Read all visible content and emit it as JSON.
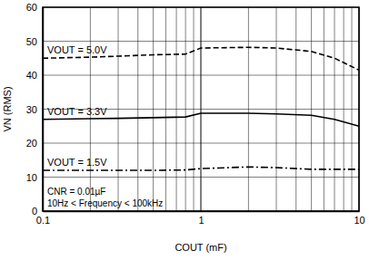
{
  "chart_data": {
    "type": "line",
    "x_label": "COUT (mF)",
    "y_label": "VN (RMS)",
    "annotations": [
      "CNR = 0.01µF",
      "10Hz < Frequency < 100kHz"
    ],
    "x": [
      0.1,
      0.2,
      0.3,
      0.5,
      0.8,
      1,
      2,
      3,
      5,
      7,
      10
    ],
    "series": [
      {
        "name": "VOUT = 5.0V",
        "color": "#000000",
        "line_style": "dashed",
        "values": [
          45,
          45.3,
          45.6,
          46,
          46.2,
          48,
          48.2,
          48,
          47,
          45,
          41.5
        ]
      },
      {
        "name": "VOUT = 3.3V",
        "color": "#000000",
        "line_style": "solid",
        "values": [
          27,
          27.2,
          27.3,
          27.5,
          27.7,
          28.8,
          28.8,
          28.6,
          28.2,
          27,
          25
        ]
      },
      {
        "name": "VOUT = 1.5V",
        "color": "#000000",
        "line_style": "dashdot",
        "values": [
          12,
          12,
          12,
          12,
          12.1,
          12.5,
          13,
          12.8,
          12.3,
          12.3,
          12.3
        ]
      }
    ],
    "log": "x",
    "grid": true,
    "xlim": [
      0.1,
      10
    ],
    "xticks": [
      0.1,
      {
        "value": 0.2,
        "label": null
      },
      {
        "value": 0.3,
        "label": null
      },
      {
        "value": 0.4,
        "label": null
      },
      {
        "value": 0.5,
        "label": null
      },
      {
        "value": 0.6,
        "label": null
      },
      {
        "value": 0.7,
        "label": null
      },
      {
        "value": 0.8,
        "label": null
      },
      {
        "value": 0.9,
        "label": null
      },
      1,
      {
        "value": 2,
        "label": null
      },
      {
        "value": 3,
        "label": null
      },
      {
        "value": 4,
        "label": null
      },
      {
        "value": 5,
        "label": null
      },
      {
        "value": 6,
        "label": null
      },
      {
        "value": 7,
        "label": null
      },
      {
        "value": 8,
        "label": null
      },
      {
        "value": 9,
        "label": null
      },
      10
    ],
    "ylim": [
      0,
      60
    ],
    "yticks": [
      0,
      10,
      20,
      30,
      40,
      50,
      60
    ]
  }
}
